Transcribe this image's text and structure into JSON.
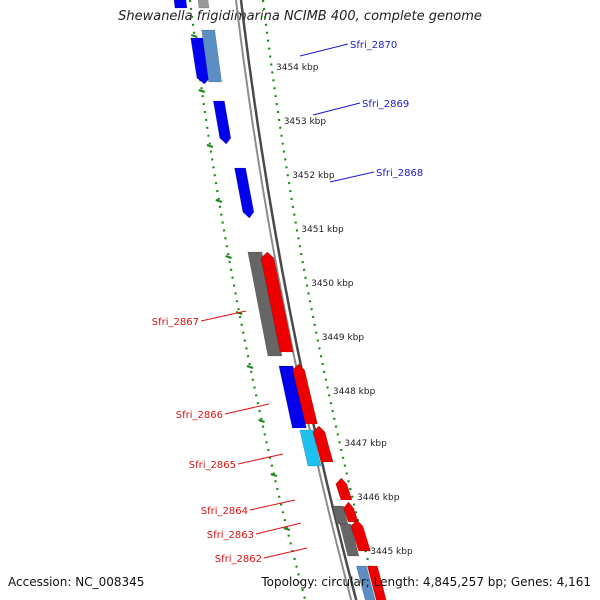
{
  "title": "Shewanella frigidimarina NCIMB 400, complete genome",
  "footer": {
    "accession": "Accession: NC_008345",
    "summary": "Topology: circular; Length: 4,845,257 bp; Genes: 4,161"
  },
  "colors": {
    "forward_strand": "#0000ee",
    "reverse_strand": "#ee0000",
    "other_feature_dark": "#666666",
    "other_feature_light": "#5b8fc4",
    "cyan_feature": "#1ec0f0",
    "ruler": "#1a8a1a",
    "backbone": "#8c8c8c"
  },
  "ticks": [
    {
      "label": "3454 kbp"
    },
    {
      "label": "3453 kbp"
    },
    {
      "label": "3452 kbp"
    },
    {
      "label": "3451 kbp"
    },
    {
      "label": "3450 kbp"
    },
    {
      "label": "3449 kbp"
    },
    {
      "label": "3448 kbp"
    },
    {
      "label": "3447 kbp"
    },
    {
      "label": "3446 kbp"
    },
    {
      "label": "3445 kbp"
    }
  ],
  "genes_right": [
    {
      "label": "Sfri_2870",
      "color": "#1a1acc"
    },
    {
      "label": "Sfri_2869",
      "color": "#1a1acc"
    },
    {
      "label": "Sfri_2868",
      "color": "#1a1acc"
    }
  ],
  "genes_left": [
    {
      "label": "Sfri_2867",
      "color": "#dd1111"
    },
    {
      "label": "Sfri_2866",
      "color": "#dd1111"
    },
    {
      "label": "Sfri_2865",
      "color": "#dd1111"
    },
    {
      "label": "Sfri_2864",
      "color": "#dd1111"
    },
    {
      "label": "Sfri_2863",
      "color": "#dd1111"
    },
    {
      "label": "Sfri_2862",
      "color": "#dd1111"
    }
  ]
}
